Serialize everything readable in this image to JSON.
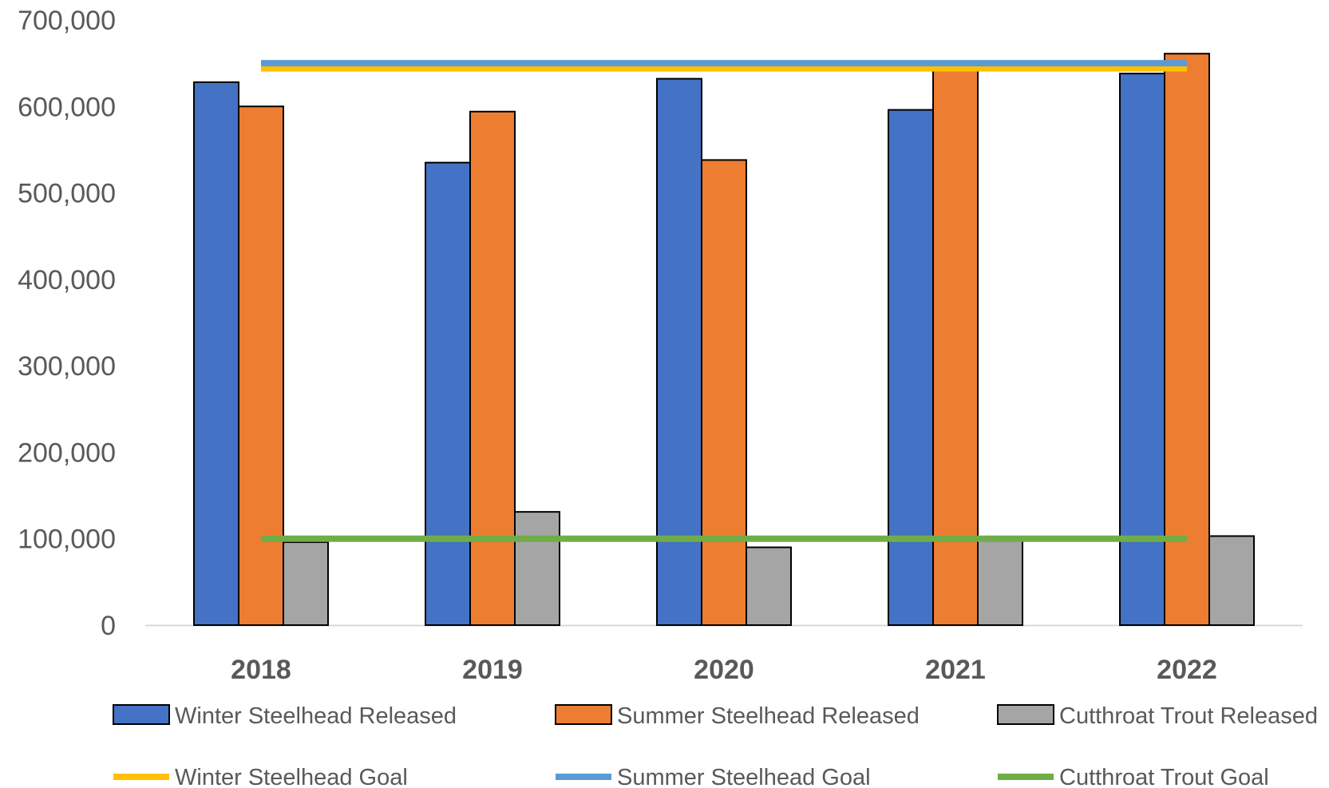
{
  "chart_data": {
    "type": "bar",
    "categories": [
      "2018",
      "2019",
      "2020",
      "2021",
      "2022"
    ],
    "series": [
      {
        "name": "Winter Steelhead Released",
        "kind": "bar",
        "color": "#4472C4",
        "values": [
          628000,
          535000,
          632000,
          596000,
          638000
        ]
      },
      {
        "name": "Summer Steelhead Released",
        "kind": "bar",
        "color": "#ED7D31",
        "values": [
          600000,
          594000,
          538000,
          650000,
          661000
        ]
      },
      {
        "name": "Cutthroat Trout Released",
        "kind": "bar",
        "color": "#A5A5A5",
        "values": [
          96000,
          131000,
          90000,
          100000,
          103000
        ]
      },
      {
        "name": "Winter Steelhead Goal",
        "kind": "line",
        "color": "#FFC000",
        "values": [
          644000,
          644000,
          644000,
          644000,
          644000
        ]
      },
      {
        "name": "Summer Steelhead Goal",
        "kind": "line",
        "color": "#5B9BD5",
        "values": [
          650000,
          650000,
          650000,
          650000,
          650000
        ]
      },
      {
        "name": "Cutthroat Trout Goal",
        "kind": "line",
        "color": "#70AD47",
        "values": [
          100000,
          100000,
          100000,
          100000,
          100000
        ]
      }
    ],
    "y_ticks": [
      "700,000",
      "600,000",
      "500,000",
      "400,000",
      "300,000",
      "200,000",
      "100,000",
      "0"
    ],
    "y_tick_values": [
      700000,
      600000,
      500000,
      400000,
      300000,
      200000,
      100000,
      0
    ],
    "ylim": [
      0,
      700000
    ],
    "legend_position": "bottom",
    "grid": false
  }
}
